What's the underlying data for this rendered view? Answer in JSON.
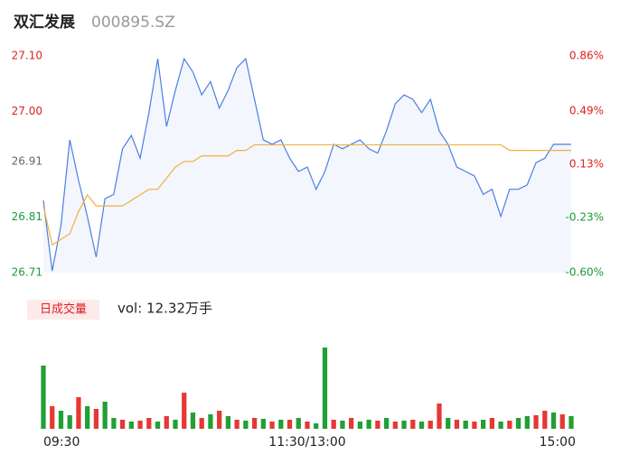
{
  "chart_data": {
    "type": "intraday",
    "title": "双汇发展",
    "subtitle": "000895.SZ",
    "volume_label": "日成交量",
    "volume_text": "vol: 12.32万手",
    "xlim": [
      0,
      60
    ],
    "xticks": [
      {
        "value": 0,
        "label": "09:30"
      },
      {
        "value": 30,
        "label": "11:30/13:00"
      },
      {
        "value": 60,
        "label": "15:00"
      }
    ],
    "ylim": [
      26.71,
      27.1
    ],
    "yticks": [
      {
        "value": 26.71,
        "label": "26.71"
      },
      {
        "value": 26.81,
        "label": "26.81"
      },
      {
        "value": 26.91,
        "label": "26.91"
      },
      {
        "value": 27.0,
        "label": "27.00"
      },
      {
        "value": 27.1,
        "label": "27.10"
      }
    ],
    "ytick_colors": [
      "#1a9a3a",
      "#1a9a3a",
      "#666666",
      "#e02020",
      "#e02020"
    ],
    "y2lim": [
      -0.6,
      0.86
    ],
    "y2ticks": [
      {
        "value": -0.6,
        "label": "-0.60%"
      },
      {
        "value": -0.23,
        "label": "-0.23%"
      },
      {
        "value": 0.13,
        "label": "0.13%"
      },
      {
        "value": 0.49,
        "label": "0.49%"
      },
      {
        "value": 0.86,
        "label": "0.86%"
      }
    ],
    "series": [
      {
        "name": "price",
        "color": "#4a7fe0",
        "values": [
          26.84,
          26.713,
          26.795,
          26.949,
          26.876,
          26.811,
          26.738,
          26.843,
          26.851,
          26.933,
          26.957,
          26.916,
          26.998,
          27.095,
          26.973,
          27.038,
          27.095,
          27.071,
          27.03,
          27.054,
          27.006,
          27.038,
          27.079,
          27.095,
          27.022,
          26.949,
          26.941,
          26.949,
          26.916,
          26.892,
          26.9,
          26.86,
          26.892,
          26.941,
          26.933,
          26.941,
          26.949,
          26.933,
          26.925,
          26.965,
          27.014,
          27.03,
          27.022,
          26.998,
          27.022,
          26.965,
          26.941,
          26.9,
          26.892,
          26.884,
          26.851,
          26.86,
          26.811,
          26.86,
          26.86,
          26.868,
          26.908,
          26.916,
          26.941,
          26.941,
          26.941
        ]
      },
      {
        "name": "average",
        "color": "#f0b13e",
        "values": [
          26.83,
          26.76,
          26.77,
          26.78,
          26.82,
          26.85,
          26.83,
          26.83,
          26.83,
          26.83,
          26.84,
          26.85,
          26.86,
          26.86,
          26.88,
          26.9,
          26.91,
          26.91,
          26.92,
          26.92,
          26.92,
          26.92,
          26.93,
          26.93,
          26.94,
          26.94,
          26.94,
          26.94,
          26.94,
          26.94,
          26.94,
          26.94,
          26.94,
          26.94,
          26.94,
          26.94,
          26.94,
          26.94,
          26.94,
          26.94,
          26.94,
          26.94,
          26.94,
          26.94,
          26.94,
          26.94,
          26.94,
          26.94,
          26.94,
          26.94,
          26.94,
          26.94,
          26.94,
          26.93,
          26.93,
          26.93,
          26.93,
          26.93,
          26.93,
          26.93,
          26.93
        ]
      }
    ],
    "volume": [
      70,
      25,
      20,
      15,
      35,
      25,
      22,
      30,
      12,
      10,
      8,
      9,
      12,
      8,
      14,
      10,
      40,
      18,
      12,
      16,
      20,
      14,
      10,
      9,
      12,
      11,
      8,
      10,
      10,
      12,
      8,
      6,
      90,
      10,
      9,
      12,
      8,
      10,
      9,
      12,
      8,
      9,
      10,
      8,
      9,
      28,
      12,
      10,
      9,
      8,
      10,
      12,
      8,
      9,
      12,
      14,
      15,
      20,
      18,
      16,
      14
    ],
    "volume_colors": [
      "#21a035",
      "#e53935",
      "#21a035",
      "#21a035",
      "#e53935",
      "#21a035",
      "#e53935",
      "#21a035",
      "#21a035",
      "#e53935",
      "#21a035",
      "#e53935",
      "#e53935",
      "#21a035",
      "#e53935",
      "#21a035",
      "#e53935",
      "#21a035",
      "#e53935",
      "#21a035",
      "#e53935",
      "#21a035",
      "#e53935",
      "#21a035",
      "#e53935",
      "#21a035",
      "#e53935",
      "#21a035",
      "#e53935",
      "#21a035",
      "#e53935",
      "#21a035",
      "#21a035",
      "#e53935",
      "#21a035",
      "#e53935",
      "#21a035",
      "#21a035",
      "#e53935",
      "#21a035",
      "#e53935",
      "#21a035",
      "#e53935",
      "#21a035",
      "#e53935",
      "#e53935",
      "#21a035",
      "#e53935",
      "#21a035",
      "#e53935",
      "#21a035",
      "#e53935",
      "#21a035",
      "#e53935",
      "#21a035",
      "#21a035",
      "#e53935",
      "#e53935",
      "#21a035",
      "#e53935",
      "#21a035"
    ]
  }
}
